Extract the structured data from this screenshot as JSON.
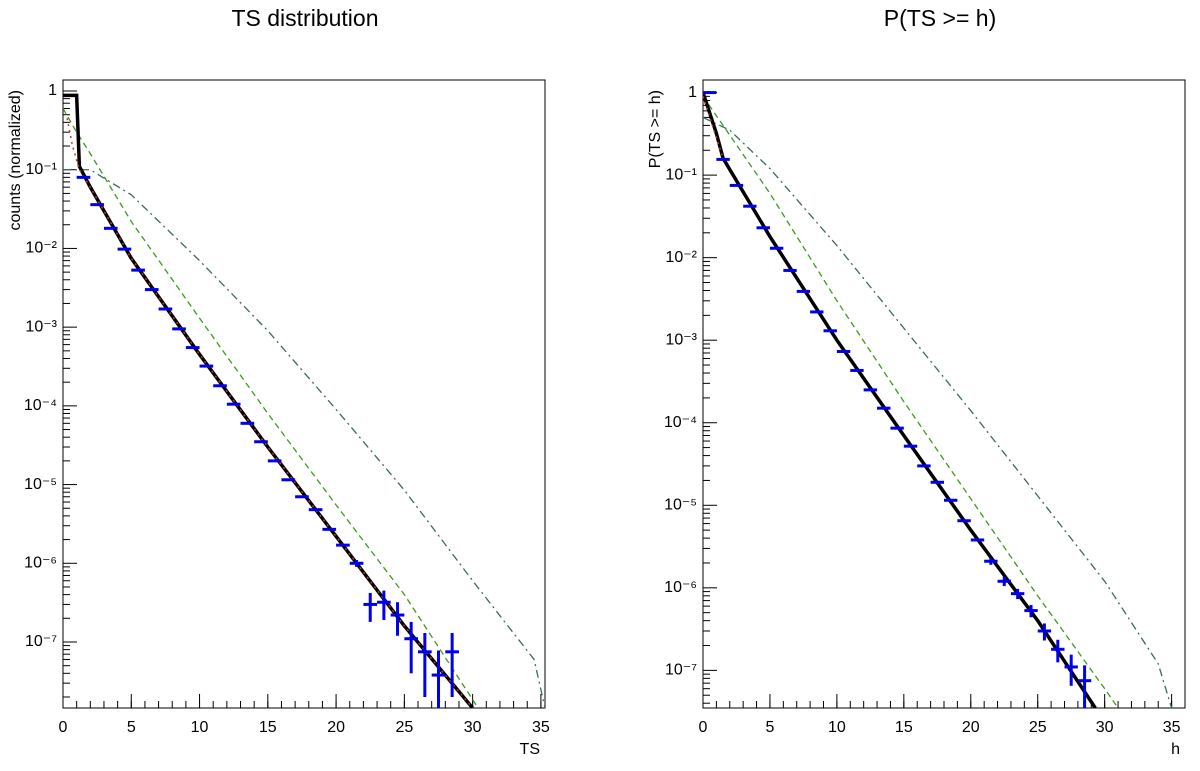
{
  "chart_data": [
    {
      "type": "line",
      "title": "TS distribution",
      "xlabel": "TS",
      "ylabel": "counts (normalized)",
      "xlim": [
        0,
        35.3
      ],
      "ylim": [
        1.45e-08,
        1.38
      ],
      "log_y": true,
      "xticks": [
        0,
        5,
        10,
        15,
        20,
        25,
        30,
        35
      ],
      "yticks": [
        {
          "value": 1,
          "label": "1"
        },
        {
          "value": 0.1,
          "label": "10⁻¹"
        },
        {
          "value": 0.01,
          "label": "10⁻²"
        },
        {
          "value": 0.001,
          "label": "10⁻³"
        },
        {
          "value": 0.0001,
          "label": "10⁻⁴"
        },
        {
          "value": 1e-05,
          "label": "10⁻⁵"
        },
        {
          "value": 1e-06,
          "label": "10⁻⁶"
        },
        {
          "value": 1e-07,
          "label": "10⁻⁷"
        }
      ],
      "series": [
        {
          "color": "#3b6b5e",
          "style": "dashdot",
          "x": [
            0,
            2,
            5,
            10,
            15,
            20,
            25,
            30,
            34.5,
            35.3
          ],
          "values": [
            0.1,
            0.1,
            0.048,
            0.007,
            0.0009,
            9e-05,
            8.5e-06,
            6e-07,
            6e-08,
            1.45e-08
          ]
        },
        {
          "color": "#3c9a1e",
          "style": "dashed",
          "x": [
            0,
            1,
            2,
            5,
            10,
            15,
            20,
            25,
            30.4
          ],
          "values": [
            0.6,
            0.3,
            0.16,
            0.022,
            0.0013,
            8e-05,
            5.5e-06,
            4e-07,
            1.45e-08
          ]
        },
        {
          "color": "#000000",
          "style": "solid",
          "x": [
            0,
            1,
            1.2,
            2,
            5,
            10,
            15,
            20,
            25,
            30
          ],
          "values": [
            0.88,
            0.88,
            0.11,
            0.06,
            0.0075,
            0.00045,
            3e-05,
            2.2e-06,
            1.6e-07,
            1.45e-08
          ]
        },
        {
          "color": "#c0392b",
          "style": "dotted",
          "x": [
            0.3,
            0.7,
            1.2,
            2,
            5,
            10,
            15,
            20,
            25,
            30
          ],
          "values": [
            0.45,
            0.2,
            0.1,
            0.06,
            0.0075,
            0.00045,
            3e-05,
            2.2e-06,
            1.6e-07,
            1.45e-08
          ]
        },
        {
          "color": "#0000ee",
          "style": "points",
          "x": [
            1.5,
            2.5,
            3.5,
            4.5,
            5.5,
            6.5,
            7.5,
            8.5,
            9.5,
            10.5,
            11.5,
            12.5,
            13.5,
            14.5,
            15.5,
            16.5,
            17.5,
            18.5,
            19.5,
            20.5,
            21.5,
            22.5,
            23.5,
            24.5,
            25.5,
            26.5,
            27.5,
            28.5
          ],
          "values": [
            0.08,
            0.036,
            0.018,
            0.0098,
            0.0053,
            0.003,
            0.0017,
            0.00095,
            0.00055,
            0.00032,
            0.00018,
            0.000105,
            6e-05,
            3.5e-05,
            2e-05,
            1.15e-05,
            7e-06,
            4.8e-06,
            2.7e-06,
            1.7e-06,
            1e-06,
            3e-07,
            3.2e-07,
            2.2e-07,
            1.1e-07,
            7.5e-08,
            3.8e-08,
            7.5e-08
          ],
          "errors": [
            0,
            0,
            0,
            0,
            0,
            0,
            0,
            0,
            0,
            0,
            0,
            0,
            0,
            0,
            0,
            0,
            0,
            0,
            0,
            0,
            1e-07,
            1.2e-07,
            1.3e-07,
            1e-07,
            7e-08,
            5.5e-08,
            4e-08,
            5.5e-08
          ]
        }
      ]
    },
    {
      "type": "line",
      "title": "P(TS >= h)",
      "xlabel": "h",
      "ylabel": "P(TS >= h)",
      "xlim": [
        0,
        36
      ],
      "ylim": [
        3.5e-08,
        1.42
      ],
      "log_y": true,
      "xticks": [
        0,
        5,
        10,
        15,
        20,
        25,
        30,
        35
      ],
      "yticks": [
        {
          "value": 1,
          "label": "1"
        },
        {
          "value": 0.1,
          "label": "10⁻¹"
        },
        {
          "value": 0.01,
          "label": "10⁻²"
        },
        {
          "value": 0.001,
          "label": "10⁻³"
        },
        {
          "value": 0.0001,
          "label": "10⁻⁴"
        },
        {
          "value": 1e-05,
          "label": "10⁻⁵"
        },
        {
          "value": 1e-06,
          "label": "10⁻⁶"
        },
        {
          "value": 1e-07,
          "label": "10⁻⁷"
        }
      ],
      "series": [
        {
          "color": "#3b6b5e",
          "style": "dashdot",
          "x": [
            0,
            2,
            5,
            10,
            15,
            20,
            25,
            30,
            34,
            35
          ],
          "values": [
            0.5,
            0.35,
            0.12,
            0.014,
            0.0014,
            0.00014,
            1.3e-05,
            1.2e-06,
            1.2e-07,
            3.5e-08
          ]
        },
        {
          "color": "#3c9a1e",
          "style": "dashed",
          "x": [
            0,
            5,
            10,
            15,
            20,
            25,
            30,
            31
          ],
          "values": [
            0.9,
            0.06,
            0.003,
            0.00018,
            1.2e-05,
            8e-07,
            6e-08,
            3.5e-08
          ]
        },
        {
          "color": "#000000",
          "style": "solid",
          "x": [
            0,
            1,
            1.5,
            5,
            10,
            15,
            20,
            25,
            29.3
          ],
          "values": [
            1,
            0.32,
            0.16,
            0.018,
            0.001,
            7e-05,
            5e-06,
            4e-07,
            3.5e-08
          ]
        },
        {
          "color": "#c0392b",
          "style": "dotted",
          "x": [
            0,
            0.7,
            1.5
          ],
          "values": [
            0.9,
            0.4,
            0.16
          ]
        },
        {
          "color": "#0000ee",
          "style": "points",
          "x": [
            0.5,
            1.5,
            2.5,
            3.5,
            4.5,
            5.5,
            6.5,
            7.5,
            8.5,
            9.5,
            10.5,
            11.5,
            12.5,
            13.5,
            14.5,
            15.5,
            16.5,
            17.5,
            18.5,
            19.5,
            20.5,
            21.5,
            22.5,
            23.5,
            24.5,
            25.5,
            26.5,
            27.5,
            28.5
          ],
          "values": [
            1,
            0.155,
            0.075,
            0.042,
            0.023,
            0.013,
            0.007,
            0.0039,
            0.0022,
            0.0013,
            0.00073,
            0.00043,
            0.00025,
            0.00015,
            8.6e-05,
            5.2e-05,
            3e-05,
            1.9e-05,
            1.15e-05,
            6.5e-06,
            3.8e-06,
            2.1e-06,
            1.2e-06,
            8.5e-07,
            5.3e-07,
            3e-07,
            1.8e-07,
            1.1e-07,
            7.5e-08
          ],
          "errors": [
            0,
            0,
            0,
            0,
            0,
            0,
            0,
            0,
            0,
            0,
            0,
            0,
            0,
            0,
            0,
            0,
            0,
            0,
            0,
            0,
            0,
            2e-07,
            1.5e-07,
            1.2e-07,
            9e-08,
            7e-08,
            5.5e-08,
            4.5e-08,
            4e-08
          ]
        }
      ]
    }
  ]
}
